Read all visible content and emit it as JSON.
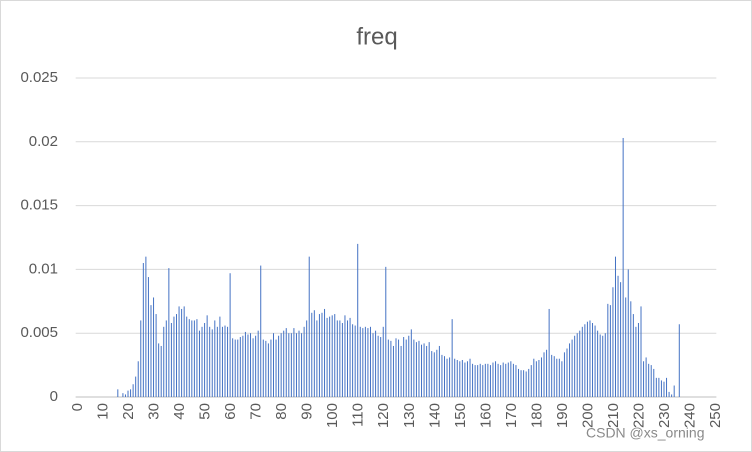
{
  "chart_data": {
    "type": "bar",
    "title": "freq",
    "color": "#4472c4",
    "grid": true,
    "watermark": "CSDN @xs_orning",
    "ylim": [
      0,
      0.025
    ],
    "yticks": [
      0,
      0.005,
      0.01,
      0.015,
      0.02,
      0.025
    ],
    "categories": [
      0,
      null,
      null,
      null,
      null,
      null,
      null,
      null,
      null,
      null,
      10,
      null,
      null,
      null,
      null,
      null,
      null,
      null,
      null,
      null,
      20,
      null,
      null,
      null,
      null,
      null,
      null,
      null,
      null,
      null,
      30,
      null,
      null,
      null,
      null,
      null,
      null,
      null,
      null,
      null,
      40,
      null,
      null,
      null,
      null,
      null,
      null,
      null,
      null,
      null,
      50,
      null,
      null,
      null,
      null,
      null,
      null,
      null,
      null,
      null,
      60,
      null,
      null,
      null,
      null,
      null,
      null,
      null,
      null,
      null,
      70,
      null,
      null,
      null,
      null,
      null,
      null,
      null,
      null,
      null,
      80,
      null,
      null,
      null,
      null,
      null,
      null,
      null,
      null,
      null,
      90,
      null,
      null,
      null,
      null,
      null,
      null,
      null,
      null,
      null,
      100,
      null,
      null,
      null,
      null,
      null,
      null,
      null,
      null,
      null,
      110,
      null,
      null,
      null,
      null,
      null,
      null,
      null,
      null,
      null,
      120,
      null,
      null,
      null,
      null,
      null,
      null,
      null,
      null,
      null,
      130,
      null,
      null,
      null,
      null,
      null,
      null,
      null,
      null,
      null,
      140,
      null,
      null,
      null,
      null,
      null,
      null,
      null,
      null,
      null,
      150,
      null,
      null,
      null,
      null,
      null,
      null,
      null,
      null,
      null,
      160,
      null,
      null,
      null,
      null,
      null,
      null,
      null,
      null,
      null,
      170,
      null,
      null,
      null,
      null,
      null,
      null,
      null,
      null,
      null,
      180,
      null,
      null,
      null,
      null,
      null,
      null,
      null,
      null,
      null,
      190,
      null,
      null,
      null,
      null,
      null,
      null,
      null,
      null,
      null,
      200,
      null,
      null,
      null,
      null,
      null,
      null,
      null,
      null,
      null,
      210,
      null,
      null,
      null,
      null,
      null,
      null,
      null,
      null,
      null,
      220,
      null,
      null,
      null,
      null,
      null,
      null,
      null,
      null,
      null,
      230,
      null,
      null,
      null,
      null,
      null,
      null,
      null,
      null,
      null,
      240,
      null,
      null,
      null,
      null,
      null,
      null,
      null,
      null,
      null,
      250
    ],
    "values": [
      0,
      0,
      0,
      0,
      0,
      0,
      0,
      0,
      0,
      0,
      0,
      0,
      0,
      0,
      0,
      0,
      0.0006,
      0,
      0.0003,
      0.0002,
      0.0005,
      0.0006,
      0.001,
      0.0016,
      0.0028,
      0.006,
      0.0105,
      0.011,
      0.0094,
      0.0072,
      0.0078,
      0.0065,
      0.0042,
      0.004,
      0.0055,
      0.006,
      0.0101,
      0.0058,
      0.0063,
      0.0065,
      0.0071,
      0.0069,
      0.0071,
      0.0063,
      0.0061,
      0.006,
      0.006,
      0.0061,
      0.0052,
      0.0055,
      0.0058,
      0.0064,
      0.0055,
      0.0053,
      0.006,
      0.0055,
      0.0063,
      0.0055,
      0.0056,
      0.0055,
      0.0097,
      0.0046,
      0.0045,
      0.0045,
      0.0047,
      0.0048,
      0.0051,
      0.0049,
      0.005,
      0.0046,
      0.0048,
      0.0052,
      0.0103,
      0.0045,
      0.0044,
      0.0042,
      0.0045,
      0.005,
      0.0045,
      0.0048,
      0.005,
      0.0052,
      0.0054,
      0.005,
      0.005,
      0.0054,
      0.005,
      0.0052,
      0.005,
      0.0055,
      0.006,
      0.011,
      0.0066,
      0.0068,
      0.006,
      0.0065,
      0.0066,
      0.0069,
      0.0062,
      0.0063,
      0.0064,
      0.0065,
      0.006,
      0.006,
      0.0058,
      0.0064,
      0.006,
      0.0062,
      0.0057,
      0.0056,
      0.012,
      0.0055,
      0.0054,
      0.0055,
      0.0054,
      0.0055,
      0.005,
      0.0052,
      0.0048,
      0.0047,
      0.0055,
      0.0102,
      0.0045,
      0.0044,
      0.004,
      0.0046,
      0.0045,
      0.004,
      0.0047,
      0.0045,
      0.0048,
      0.0053,
      0.0045,
      0.0043,
      0.0044,
      0.0041,
      0.0042,
      0.004,
      0.0043,
      0.0036,
      0.0035,
      0.0037,
      0.004,
      0.0033,
      0.0032,
      0.003,
      0.0031,
      0.0061,
      0.003,
      0.0029,
      0.0028,
      0.0029,
      0.0027,
      0.0028,
      0.003,
      0.0026,
      0.0025,
      0.0025,
      0.0026,
      0.0025,
      0.0026,
      0.0026,
      0.0025,
      0.0027,
      0.0028,
      0.0026,
      0.0025,
      0.0027,
      0.0026,
      0.0027,
      0.0028,
      0.0026,
      0.0025,
      0.0022,
      0.0021,
      0.0021,
      0.002,
      0.0022,
      0.0025,
      0.003,
      0.0028,
      0.0029,
      0.0031,
      0.0035,
      0.0037,
      0.0069,
      0.0033,
      0.0032,
      0.003,
      0.003,
      0.0028,
      0.0035,
      0.0038,
      0.0042,
      0.0045,
      0.0048,
      0.005,
      0.0052,
      0.0055,
      0.0057,
      0.0059,
      0.006,
      0.0058,
      0.0056,
      0.0052,
      0.0049,
      0.0048,
      0.005,
      0.0073,
      0.0072,
      0.0086,
      0.011,
      0.0095,
      0.009,
      0.0203,
      0.0078,
      0.01,
      0.0075,
      0.0065,
      0.0055,
      0.0058,
      0.0071,
      0.0028,
      0.0031,
      0.0026,
      0.0025,
      0.0022,
      0.0015,
      0.0015,
      0.0013,
      0.0012,
      0.0015,
      0.0004,
      0.0002,
      0.0009,
      0,
      0.0057,
      0,
      0,
      0,
      0,
      0,
      0,
      0,
      0,
      0,
      0,
      0,
      0,
      0,
      0
    ]
  }
}
